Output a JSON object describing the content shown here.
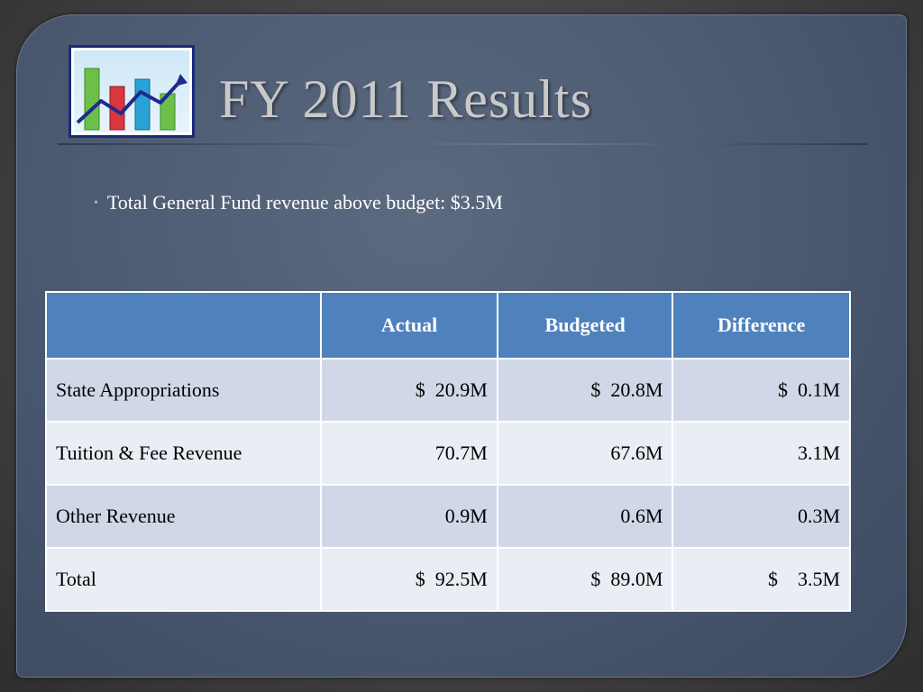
{
  "slide": {
    "title": "FY 2011 Results",
    "logo_icon": "bar-chart-trend-icon",
    "bullets": [
      "Total General Fund revenue above budget: $3.5M"
    ]
  },
  "table": {
    "headers": [
      "",
      "Actual",
      "Budgeted",
      "Difference"
    ],
    "rows": [
      {
        "label": "State Appropriations",
        "actual": "$  20.9M",
        "budgeted": "$  20.8M",
        "difference": "$  0.1M"
      },
      {
        "label": "Tuition & Fee Revenue",
        "actual": "70.7M",
        "budgeted": "67.6M",
        "difference": "3.1M"
      },
      {
        "label": "Other Revenue",
        "actual": "0.9M",
        "budgeted": "0.6M",
        "difference": "0.3M"
      },
      {
        "label": "Total",
        "actual": "$  92.5M",
        "budgeted": "$  89.0M",
        "difference": "$    3.5M"
      }
    ]
  },
  "colors": {
    "header_fill": "#4f81bd",
    "row_odd": "#d0d8e8",
    "row_even": "#e9edf4",
    "title": "#c9c9c9"
  }
}
